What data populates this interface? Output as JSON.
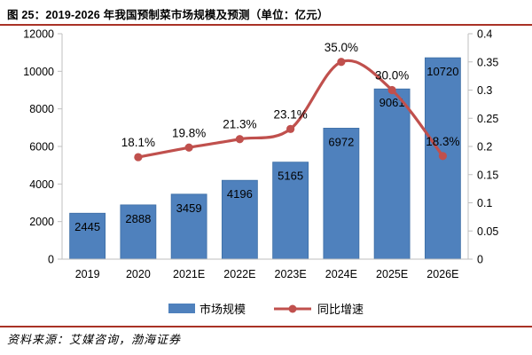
{
  "header": {
    "title": "图 25：2019-2026 年我国预制菜市场规模及预测（单位：亿元）"
  },
  "footer": {
    "source": "资料来源：艾媒咨询，渤海证券"
  },
  "colors": {
    "bar": "#4F81BD",
    "bar_border": "#3D6EA5",
    "line": "#C0504D",
    "divider": "#A93226",
    "axis_line": "#BFBFBF",
    "label_text": "#000000"
  },
  "chart_data": {
    "type": "bar+line",
    "title": "2019-2026 年我国预制菜市场规模及预测（单位：亿元）",
    "categories": [
      "2019",
      "2020",
      "2021E",
      "2022E",
      "2023E",
      "2024E",
      "2025E",
      "2026E"
    ],
    "series": [
      {
        "name": "市场规模",
        "type": "bar",
        "axis": "left",
        "color": "#4F81BD",
        "values": [
          2445,
          2888,
          3459,
          4196,
          5165,
          6972,
          9061,
          10720
        ],
        "labels": [
          "2445",
          "2888",
          "3459",
          "4196",
          "5165",
          "6972",
          "9061",
          "10720"
        ]
      },
      {
        "name": "同比增速",
        "type": "line",
        "axis": "right",
        "color": "#C0504D",
        "values": [
          null,
          0.181,
          0.198,
          0.213,
          0.231,
          0.35,
          0.3,
          0.183
        ],
        "labels": [
          "",
          "18.1%",
          "19.8%",
          "21.3%",
          "23.1%",
          "35.0%",
          "30.0%",
          "18.3%"
        ]
      }
    ],
    "left_axis": {
      "min": 0,
      "max": 12000,
      "step": 2000,
      "ticks": [
        "0",
        "2000",
        "4000",
        "6000",
        "8000",
        "10000",
        "12000"
      ]
    },
    "right_axis": {
      "min": 0,
      "max": 0.4,
      "step": 0.05,
      "ticks": [
        "0",
        "0.05",
        "0.1",
        "0.15",
        "0.2",
        "0.25",
        "0.3",
        "0.35",
        "0.4"
      ]
    },
    "grid": false,
    "legend_position": "bottom"
  }
}
